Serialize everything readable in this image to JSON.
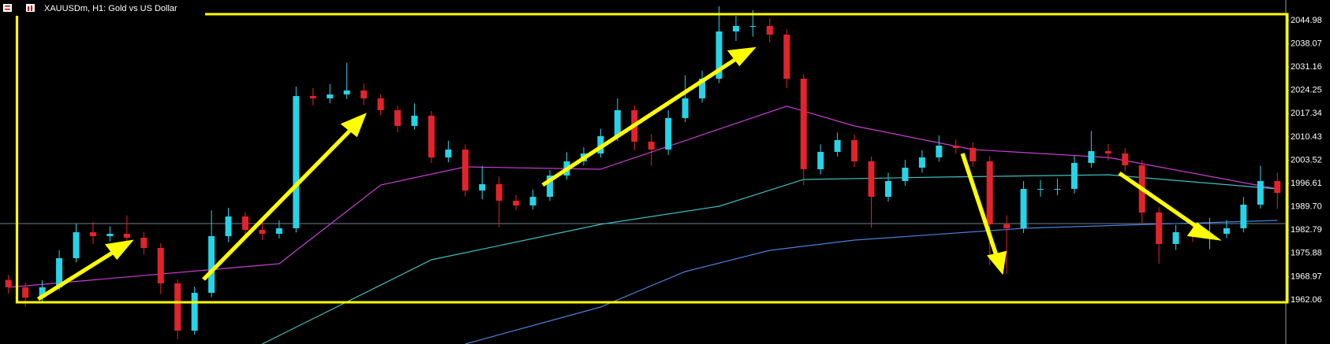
{
  "chart_data": {
    "type": "candlestick",
    "title": "XAUUSDm, H1:  Gold vs US Dollar",
    "open": [
      1968.0,
      1965.8,
      1962.76,
      1965.8,
      1974.44,
      1982.15,
      1980.98,
      1981.68,
      1980.51,
      1977.48,
      1966.97,
      1952.95,
      1964.16,
      1980.98,
      1986.82,
      1982.85,
      1981.68,
      1983.32,
      2022.56,
      2021.86,
      2023.03,
      2024.2,
      2021.86,
      2018.36,
      2013.69,
      2016.72,
      2004.34,
      2006.68,
      1994.53,
      1996.4,
      1991.49,
      1990.09,
      1992.66,
      1998.97,
      2003.17,
      2005.51,
      2010.65,
      2018.36,
      2009.01,
      2006.68,
      2016.02,
      2021.86,
      2027.7,
      2041.72,
      2043.35,
      2043.35,
      2040.78,
      2027.7,
      2000.84,
      2005.98,
      2009.48,
      2003.17,
      1992.66,
      1997.33,
      2001.3,
      2004.34,
      2007.85,
      2007.14,
      2003.17,
      1984.49,
      1983.32,
      1995.0,
      1995.0,
      1995.0,
      2002.71,
      2006.21,
      2005.51,
      2002.01,
      1987.99,
      1978.65,
      1982.15,
      1981.45,
      1981.68,
      1983.32,
      1990.33,
      1997.33
    ],
    "high": [
      1969.5,
      1967.2,
      1967.9,
      1976.8,
      1984.6,
      1985.3,
      1983.9,
      1987.1,
      1982.3,
      1978.9,
      1968.2,
      1966.0,
      1988.6,
      1989.4,
      1988.1,
      1985.2,
      1985.7,
      2025.4,
      2024.9,
      2026.1,
      2032.4,
      2026.3,
      2023.1,
      2019.7,
      2020.4,
      2018.1,
      2009.3,
      2008.2,
      2001.8,
      1998.6,
      1993.2,
      1994.8,
      2000.6,
      2005.9,
      2007.4,
      2012.8,
      2021.9,
      2019.8,
      2011.2,
      2018.4,
      2028.7,
      2030.1,
      2049.2,
      2046.3,
      2048.1,
      2045.6,
      2042.3,
      2029.1,
      2008.2,
      2011.7,
      2011.1,
      2004.6,
      1999.8,
      2003.6,
      2006.5,
      2010.9,
      2009.6,
      2008.8,
      2004.7,
      1987.2,
      1997.3,
      1997.6,
      1998.1,
      2004.8,
      2012.2,
      2008.3,
      2007.1,
      2003.5,
      1989.6,
      1984.3,
      1983.9,
      1986.4,
      1985.8,
      1992.6,
      2001.9,
      1999.8
    ],
    "low": [
      1963.9,
      1960.1,
      1961.4,
      1964.9,
      1973.2,
      1978.7,
      1979.4,
      1978.9,
      1975.6,
      1963.8,
      1950.4,
      1951.8,
      1962.9,
      1979.2,
      1980.6,
      1979.9,
      1980.3,
      1982.1,
      2019.8,
      2020.4,
      2021.7,
      2019.9,
      2016.9,
      2011.8,
      2012.6,
      2002.7,
      2002.9,
      1992.8,
      1991.9,
      1983.7,
      1988.7,
      1988.9,
      1991.4,
      1997.8,
      2001.9,
      2004.3,
      2009.2,
      2006.4,
      2001.9,
      2005.1,
      2014.8,
      2020.6,
      2026.4,
      2038.9,
      2040.2,
      2038.4,
      2024.9,
      1996.1,
      1999.3,
      2004.6,
      2001.5,
      1983.5,
      1991.2,
      1995.9,
      1999.8,
      2003.1,
      2005.4,
      2001.6,
      1972.4,
      1969.8,
      1981.9,
      1992.7,
      1993.1,
      1993.6,
      2001.3,
      2003.4,
      2000.3,
      1984.6,
      1972.8,
      1976.9,
      1979.2,
      1977.1,
      1980.4,
      1982.1,
      1989.2,
      1989.1
    ],
    "close": [
      1965.8,
      1962.76,
      1965.8,
      1974.44,
      1982.15,
      1980.98,
      1981.68,
      1980.51,
      1977.48,
      1966.97,
      1952.95,
      1964.16,
      1980.98,
      1986.82,
      1982.85,
      1981.68,
      1983.32,
      2022.56,
      2021.86,
      2023.03,
      2024.2,
      2021.86,
      2018.36,
      2013.69,
      2016.72,
      2004.34,
      2006.68,
      1994.53,
      1996.4,
      1991.49,
      1990.09,
      1992.66,
      1998.97,
      2003.17,
      2005.51,
      2010.65,
      2018.36,
      2009.01,
      2006.68,
      2016.02,
      2021.86,
      2027.7,
      2041.72,
      2043.35,
      2043.35,
      2040.78,
      2027.7,
      2000.84,
      2005.98,
      2009.48,
      2003.17,
      1992.66,
      1997.33,
      2001.3,
      2004.34,
      2007.85,
      2007.14,
      2003.17,
      1984.49,
      1983.32,
      1995.0,
      1995.0,
      1995.0,
      2002.71,
      2006.21,
      2005.51,
      2002.01,
      1987.99,
      1978.65,
      1982.15,
      1981.45,
      1981.68,
      1983.32,
      1990.33,
      1997.33,
      1993.83
    ],
    "up_color": "#27d3e6",
    "down_color": "#e3232b",
    "overlays": [
      {
        "color": "#c53fd0",
        "x": [
          0,
          16,
          22,
          27,
          35,
          46,
          50,
          57,
          65,
          75
        ],
        "values": [
          1965.8,
          1972.81,
          1996.17,
          2001.54,
          2000.84,
          2019.53,
          2013.69,
          2006.68,
          2004.34,
          1995.0
        ]
      },
      {
        "color": "#3fbfbf",
        "x": [
          15,
          25,
          35,
          42,
          47,
          55,
          65,
          75
        ],
        "values": [
          1948.98,
          1973.97,
          1984.49,
          1989.86,
          1997.8,
          1998.5,
          1999.2,
          1995.0
        ]
      },
      {
        "color": "#4a80d8",
        "x": [
          27,
          35,
          40,
          45,
          50,
          60,
          75
        ],
        "values": [
          1948.98,
          1959.96,
          1970.47,
          1976.78,
          1979.81,
          1983.32,
          1985.65
        ]
      }
    ],
    "price_line": 1984.72,
    "price_line_color": "#6f8090",
    "ylim": [
      1948.98,
      2051.05
    ],
    "yticks": [
      1962.06,
      1968.97,
      1975.88,
      1982.79,
      {
        "value": 1989.7,
        "label": "1989.70"
      },
      1996.61,
      2003.52,
      2010.43,
      2017.34,
      2024.25,
      2031.16,
      2038.07,
      2044.98
    ]
  }
}
